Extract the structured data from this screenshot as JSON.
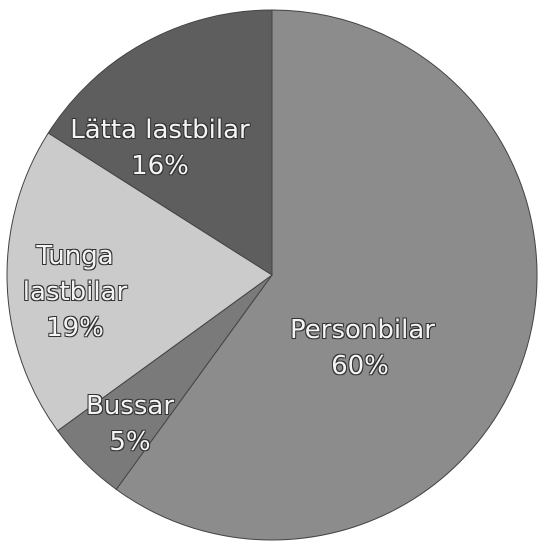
{
  "chart_data": {
    "type": "pie",
    "categories": [
      "Personbilar",
      "Bussar",
      "Tunga lastbilar",
      "Lätta lastbilar"
    ],
    "values": [
      60,
      5,
      19,
      16
    ],
    "value_labels": [
      "60%",
      "5%",
      "19%",
      "16%"
    ],
    "colors": [
      "#8c8c8c",
      "#7a7a7a",
      "#cbcbcb",
      "#5e5e5e"
    ]
  }
}
